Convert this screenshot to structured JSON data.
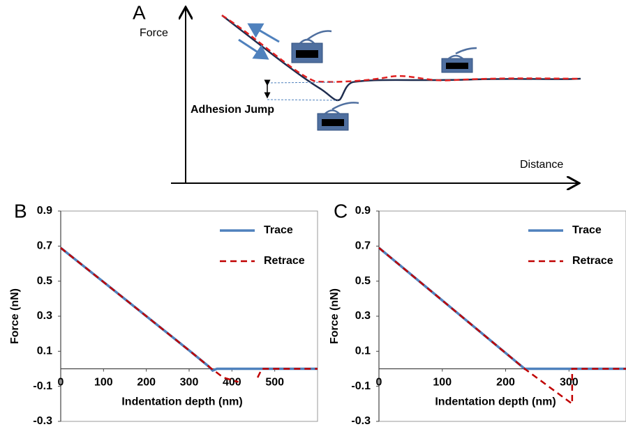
{
  "panel_a": {
    "label": "A",
    "y_axis_label": "Force",
    "x_axis_label": "Distance",
    "annotation": "Adhesion Jump"
  },
  "chart_data": [
    {
      "type": "line",
      "label": "B",
      "x_label": "Indentation depth (nm)",
      "y_label": "Force (nN)",
      "xlim": [
        0,
        600
      ],
      "xticks": [
        0,
        100,
        200,
        300,
        400,
        500
      ],
      "ylim": [
        -0.3,
        0.9
      ],
      "yticks": [
        0.9,
        0.7,
        0.5,
        0.3,
        0.1,
        -0.1,
        -0.3
      ],
      "legend": "upper right",
      "series": [
        {
          "name": "Trace",
          "color": "#4f81bd",
          "dashed": false,
          "x": [
            0,
            100,
            200,
            300,
            345,
            355,
            365,
            600
          ],
          "values": [
            0.69,
            0.495,
            0.3,
            0.105,
            0.015,
            -0.01,
            0,
            0
          ]
        },
        {
          "name": "Retrace",
          "color": "#c00000",
          "dashed": true,
          "x": [
            0,
            300,
            350,
            380,
            415,
            430,
            460,
            470,
            600
          ],
          "values": [
            0.69,
            0.105,
            0.005,
            -0.05,
            -0.075,
            null,
            -0.05,
            0,
            0
          ]
        }
      ]
    },
    {
      "type": "line",
      "label": "C",
      "x_label": "Indentation depth (nm)",
      "y_label": "Force (nN)",
      "xlim": [
        0,
        390
      ],
      "xticks": [
        0,
        100,
        200,
        300
      ],
      "ylim": [
        -0.3,
        0.9
      ],
      "yticks": [
        0.9,
        0.7,
        0.5,
        0.3,
        0.1,
        -0.1,
        -0.3
      ],
      "legend": "upper right",
      "series": [
        {
          "name": "Trace",
          "color": "#4f81bd",
          "dashed": false,
          "x": [
            0,
            230,
            390
          ],
          "values": [
            0.69,
            0,
            0
          ]
        },
        {
          "name": "Retrace",
          "color": "#c00000",
          "dashed": true,
          "x": [
            0,
            230,
            305,
            305,
            390
          ],
          "values": [
            0.69,
            0,
            -0.2,
            0,
            0
          ]
        }
      ]
    }
  ]
}
